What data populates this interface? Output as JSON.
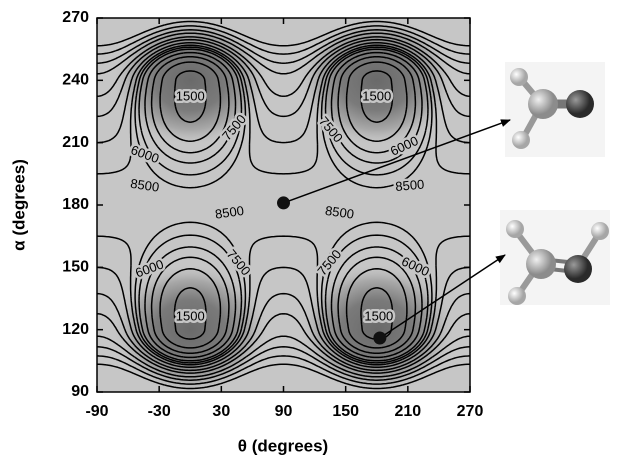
{
  "chart_data": {
    "type": "contour",
    "xlabel": "θ (degrees)",
    "ylabel": "α (degrees)",
    "xlim": [
      -90,
      270
    ],
    "ylim": [
      90,
      270
    ],
    "xticks": [
      -90,
      -30,
      30,
      90,
      150,
      210,
      270
    ],
    "yticks": [
      90,
      120,
      150,
      180,
      210,
      240,
      270
    ],
    "levels": [
      1500,
      3000,
      4500,
      6000,
      7500,
      8500,
      9500,
      11000,
      13000,
      15000,
      18000,
      21000,
      25000,
      30000
    ],
    "color": "#000000",
    "points": {
      "x": [
        90,
        183
      ],
      "y": [
        181,
        116
      ]
    }
  }
}
